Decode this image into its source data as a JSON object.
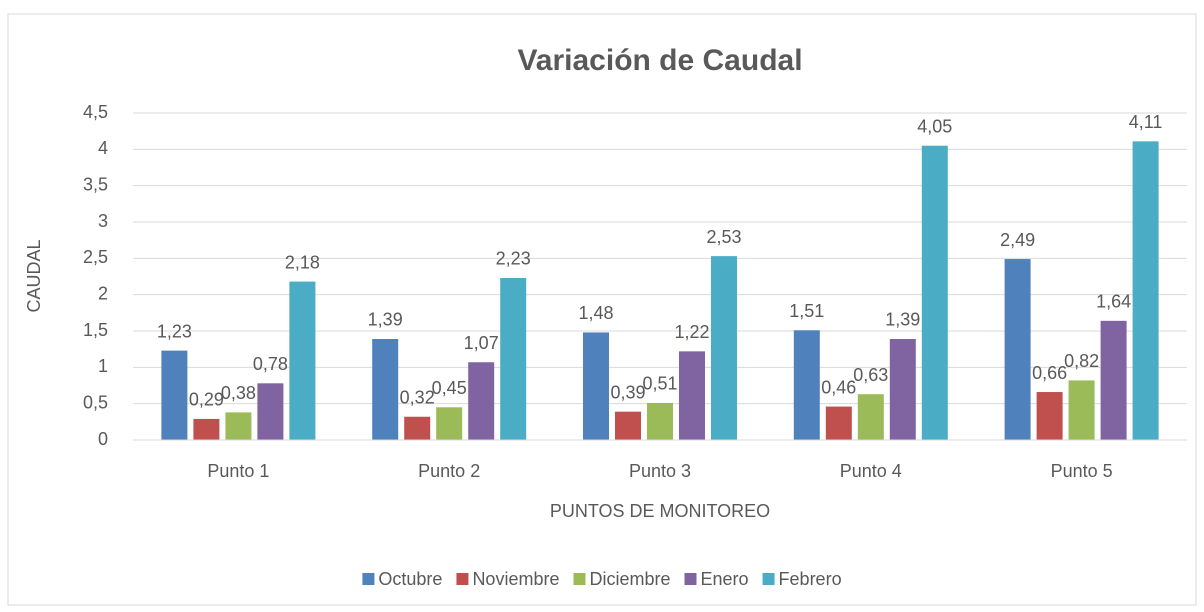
{
  "chart_data": {
    "type": "bar",
    "title": "Variación de Caudal",
    "x_label": "PUNTOS DE MONITOREO",
    "y_label": "CAUDAL",
    "categories": [
      "Punto 1",
      "Punto 2",
      "Punto 3",
      "Punto 4",
      "Punto 5"
    ],
    "series": [
      {
        "name": "Octubre",
        "color": "#4f81bd",
        "values": [
          1.23,
          1.39,
          1.48,
          1.51,
          2.49
        ],
        "value_labels": [
          "1,23",
          "1,39",
          "1,48",
          "1,51",
          "2,49"
        ]
      },
      {
        "name": "Noviembre",
        "color": "#c0504d",
        "values": [
          0.29,
          0.32,
          0.39,
          0.46,
          0.66
        ],
        "value_labels": [
          "0,29",
          "0,32",
          "0,39",
          "0,46",
          "0,66"
        ]
      },
      {
        "name": "Diciembre",
        "color": "#9bbb59",
        "values": [
          0.38,
          0.45,
          0.51,
          0.63,
          0.82
        ],
        "value_labels": [
          "0,38",
          "0,45",
          "0,51",
          "0,63",
          "0,82"
        ]
      },
      {
        "name": "Enero",
        "color": "#8064a2",
        "values": [
          0.78,
          1.07,
          1.22,
          1.39,
          1.64
        ],
        "value_labels": [
          "0,78",
          "1,07",
          "1,22",
          "1,39",
          "1,64"
        ]
      },
      {
        "name": "Febrero",
        "color": "#4bacc6",
        "values": [
          2.18,
          2.23,
          2.53,
          4.05,
          4.11
        ],
        "value_labels": [
          "2,18",
          "2,23",
          "2,53",
          "4,05",
          "4,11"
        ]
      }
    ],
    "ylim": [
      0,
      4.5
    ],
    "yticks": [
      0,
      {
        "value": 0.5,
        "label": "0,5"
      },
      1,
      {
        "value": 1.5,
        "label": "1,5"
      },
      2,
      {
        "value": 2.5,
        "label": "2,5"
      },
      3,
      {
        "value": 3.5,
        "label": "3,5"
      },
      4,
      {
        "value": 4.5,
        "label": "4,5"
      }
    ],
    "grid": true,
    "legend": "bottom"
  }
}
